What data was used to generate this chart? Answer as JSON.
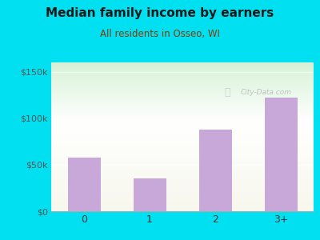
{
  "title": "Median family income by earners",
  "subtitle": "All residents in Osseo, WI",
  "categories": [
    "0",
    "1",
    "2",
    "3+"
  ],
  "values": [
    58000,
    35000,
    88000,
    122000
  ],
  "bar_color": "#c8a8d8",
  "background_outer": "#00e0f0",
  "title_color": "#1a1a1a",
  "subtitle_color": "#8b3a0a",
  "yticks": [
    0,
    50000,
    100000,
    150000
  ],
  "ytick_labels": [
    "$0",
    "$50k",
    "$100k",
    "$150k"
  ],
  "ylim": [
    0,
    160000
  ],
  "watermark": "City-Data.com"
}
